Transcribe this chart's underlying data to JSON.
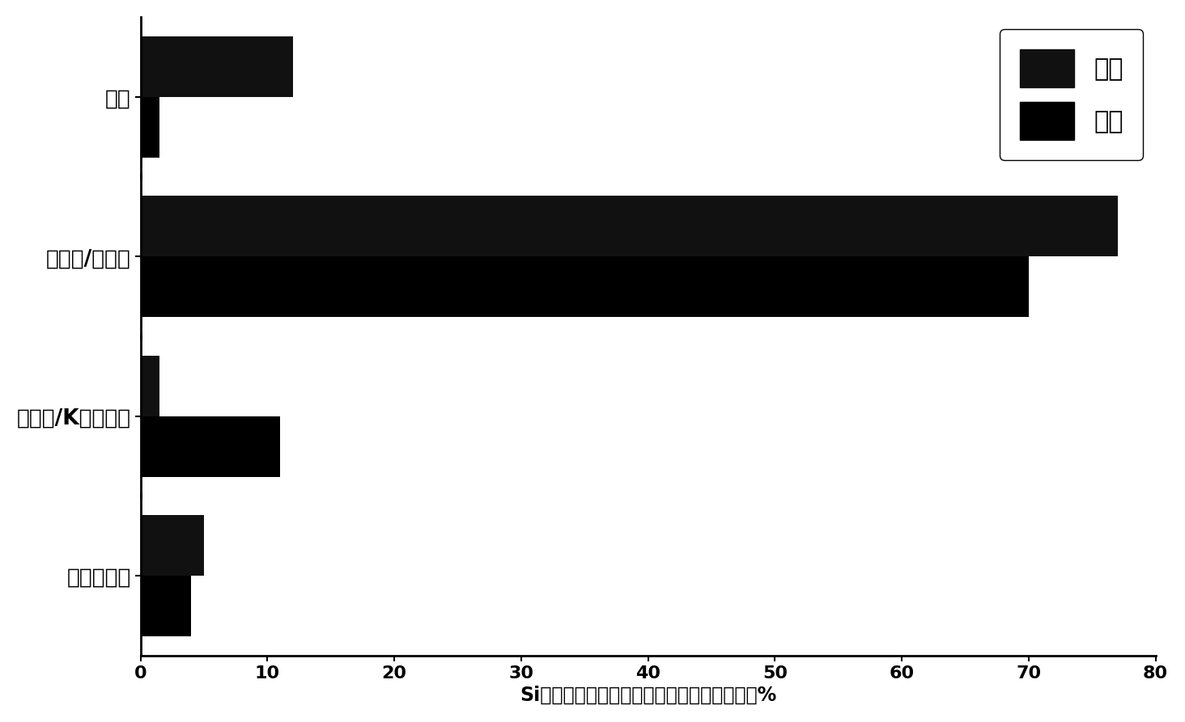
{
  "categories": [
    "难识别矿物",
    "伊利石/K硅铝酸盐",
    "高岭石/莫来石",
    "石英"
  ],
  "series": [
    {
      "name": "原煤",
      "values": [
        5.0,
        1.5,
        77.0,
        12.0
      ],
      "color": "#111111"
    },
    {
      "name": "煤灰",
      "values": [
        4.0,
        11.0,
        70.0,
        1.5
      ],
      "color": "#000000"
    }
  ],
  "xlabel": "Si元素燃烧前后在各矿物成分中的质量分布，%",
  "xlim": [
    0,
    80
  ],
  "xticks": [
    0,
    10,
    20,
    30,
    40,
    50,
    60,
    70,
    80
  ],
  "bar_height": 0.38,
  "background_color": "#ffffff",
  "label_font_size": 19,
  "xlabel_font_size": 17,
  "tick_font_size": 16,
  "legend_font_size": 22
}
